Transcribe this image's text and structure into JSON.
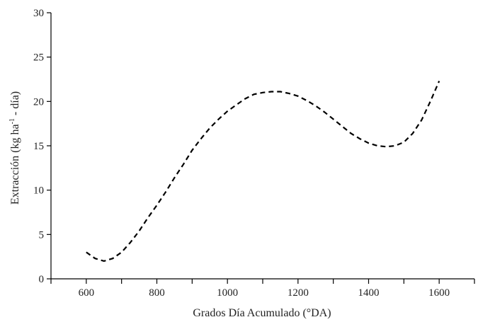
{
  "chart_data": {
    "type": "line",
    "title": "",
    "xlabel": "Grados Día Acumulado (°DA)",
    "ylabel_parts": {
      "main": "Extracción (kg ha",
      "superscript": "-1",
      "end": " - día)"
    },
    "xlim": [
      500,
      1700
    ],
    "ylim": [
      0,
      30
    ],
    "x_ticks": [
      600,
      800,
      1000,
      1200,
      1400,
      1600
    ],
    "x_ticks_unlabeled": [
      500,
      700,
      900,
      1100,
      1300,
      1500,
      1700
    ],
    "y_ticks": [
      0,
      5,
      10,
      15,
      20,
      25,
      30
    ],
    "grid": false,
    "legend": "none",
    "series": [
      {
        "line_style": "dashed",
        "color": "#000000",
        "x": [
          600,
          625,
          650,
          675,
          700,
          725,
          750,
          775,
          800,
          825,
          850,
          875,
          900,
          925,
          950,
          975,
          1000,
          1025,
          1050,
          1075,
          1100,
          1125,
          1150,
          1175,
          1200,
          1225,
          1250,
          1275,
          1300,
          1325,
          1350,
          1375,
          1400,
          1425,
          1450,
          1475,
          1500,
          1525,
          1550,
          1575,
          1600
        ],
        "y": [
          3.0,
          2.3,
          2.0,
          2.3,
          3.0,
          4.1,
          5.4,
          6.9,
          8.3,
          9.8,
          11.4,
          12.9,
          14.5,
          15.8,
          17.0,
          18.0,
          18.9,
          19.6,
          20.3,
          20.8,
          21.0,
          21.1,
          21.1,
          20.9,
          20.6,
          20.1,
          19.5,
          18.8,
          18.0,
          17.2,
          16.4,
          15.8,
          15.3,
          15.0,
          14.9,
          15.0,
          15.4,
          16.4,
          17.9,
          20.0,
          22.3
        ]
      }
    ]
  }
}
